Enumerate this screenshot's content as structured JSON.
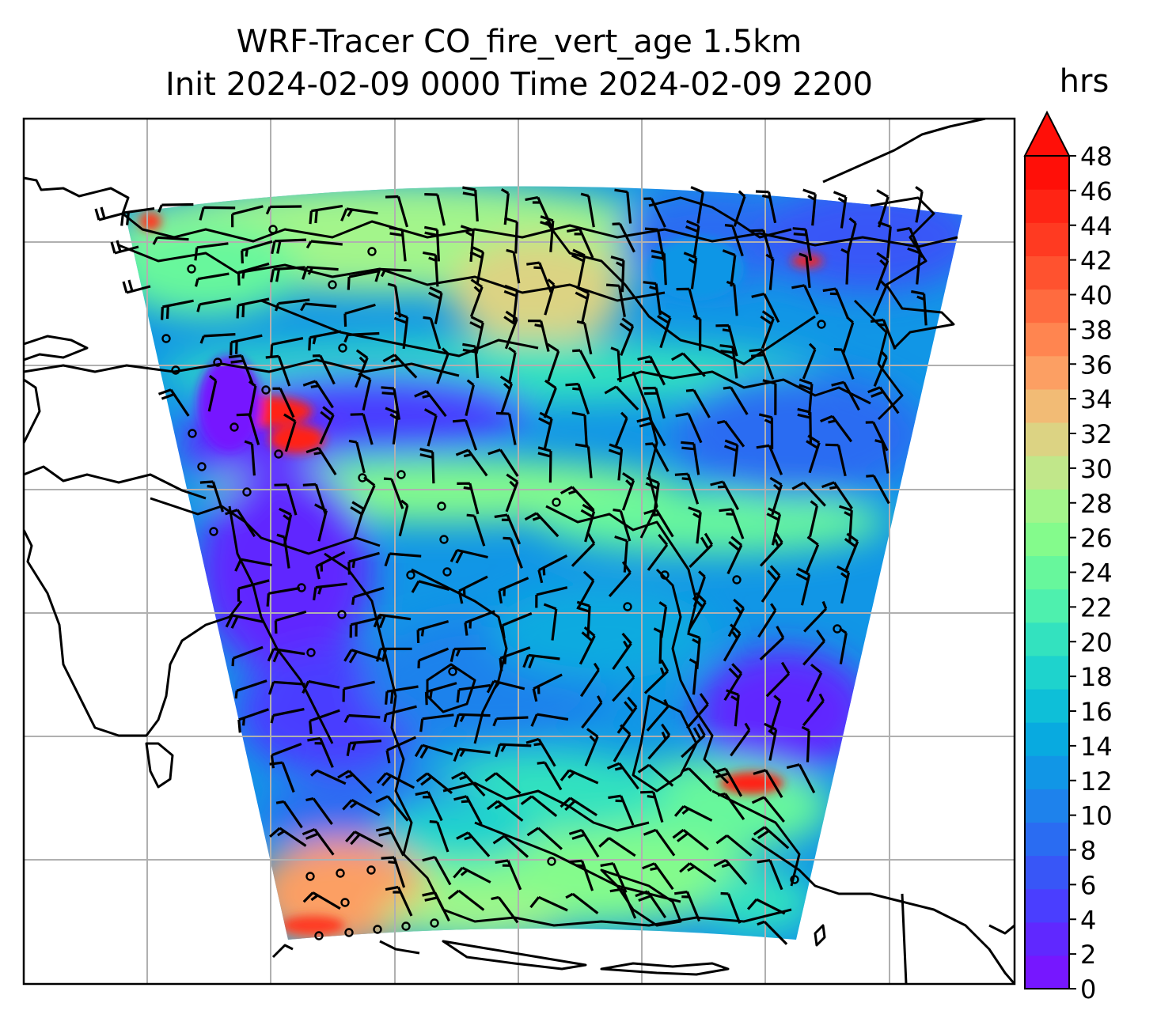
{
  "title_line1": "WRF-Tracer CO_fire_vert_age 1.5km",
  "title_line2": "Init 2024-02-09 0000 Time 2024-02-09 2200",
  "colorbar": {
    "units": "hrs",
    "min": 0,
    "max": 48,
    "step": 2,
    "extend": "max",
    "ticks": [
      "0",
      "2",
      "4",
      "6",
      "8",
      "10",
      "12",
      "14",
      "16",
      "18",
      "20",
      "22",
      "24",
      "26",
      "28",
      "30",
      "32",
      "34",
      "36",
      "38",
      "40",
      "42",
      "44",
      "46",
      "48"
    ],
    "colors": [
      "#7617ff",
      "#6028ff",
      "#4a3eff",
      "#3856f7",
      "#2a6cf2",
      "#1e82ec",
      "#1196e6",
      "#08aae0",
      "#0ebfd8",
      "#1ed3cd",
      "#33e2bf",
      "#4ef0ae",
      "#67f79c",
      "#84fb8c",
      "#a3f58b",
      "#c1e78a",
      "#dcd383",
      "#f2bb75",
      "#fc9f63",
      "#ff8550",
      "#ff6b3f",
      "#ff522f",
      "#ff3a21",
      "#ff2414",
      "#ff0f08"
    ]
  },
  "map": {
    "gridlines": true,
    "coastlines": true,
    "wind_barbs": true
  }
}
